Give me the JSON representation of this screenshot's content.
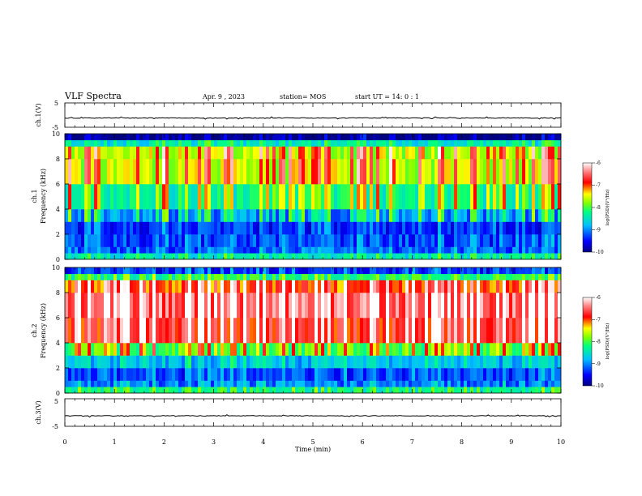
{
  "header": {
    "title": "VLF Spectra",
    "date": "Apr. 9 , 2023",
    "station": "station= MOS",
    "start": "start UT = 14: 0 : 1"
  },
  "panels": {
    "ch1_wave": {
      "label": "ch.1(V)",
      "ticks": [
        "5",
        "-5"
      ]
    },
    "ch1_spec": {
      "label_line1": "ch.1",
      "label_line2": "Frequency (kHz)"
    },
    "ch2_spec": {
      "label_line1": "ch.2",
      "label_line2": "Frequency (kHz)"
    },
    "ch3_wave": {
      "label": "ch.3(V)",
      "ticks": [
        "5",
        "-5"
      ]
    }
  },
  "colorbar": {
    "label": "log(PSD)(V²/Hz)",
    "ticks": [
      "-6",
      "-7",
      "-8",
      "-9",
      "-10"
    ]
  },
  "chart_data": [
    {
      "type": "line",
      "title": "",
      "ylabel": "ch.1(V)",
      "ylim": [
        -5,
        5
      ],
      "xlim": [
        0,
        10
      ],
      "x": [
        0,
        10
      ],
      "values": [
        -1.2,
        -1.2
      ]
    },
    {
      "type": "heatmap",
      "ylabel": "ch.1 Frequency (kHz)",
      "xlim": [
        0,
        10
      ],
      "ylim": [
        0,
        10
      ],
      "yticks": [
        "0",
        "2",
        "4",
        "6",
        "8",
        "10"
      ],
      "color_range": [
        -10,
        -6
      ],
      "freq_bands_khz": [
        0,
        0.5,
        1,
        2,
        3,
        4,
        6,
        8,
        9,
        9.5,
        10
      ],
      "band_log_psd": [
        -8.5,
        -9.2,
        -9.3,
        -9.4,
        -9.0,
        -8.3,
        -7.6,
        -7.6,
        -8.5,
        -10
      ]
    },
    {
      "type": "heatmap",
      "ylabel": "ch.2 Frequency (kHz)",
      "xlim": [
        0,
        10
      ],
      "ylim": [
        0,
        10
      ],
      "yticks": [
        "0",
        "2",
        "4",
        "6",
        "8",
        "10"
      ],
      "color_range": [
        -10,
        -6
      ],
      "freq_bands_khz": [
        0,
        0.5,
        1,
        2,
        3,
        4,
        6,
        8,
        9,
        9.5,
        10
      ],
      "band_log_psd": [
        -8.3,
        -9.1,
        -9.3,
        -8.8,
        -8.0,
        -6.8,
        -6.5,
        -7.0,
        -8.2,
        -9.4
      ]
    },
    {
      "type": "line",
      "ylabel": "ch.3(V)",
      "ylim": [
        -5,
        5
      ],
      "xlim": [
        0,
        10
      ],
      "x": [
        0,
        10
      ],
      "values": [
        -1.2,
        -1.2
      ]
    }
  ],
  "xaxis": {
    "label": "Time (min)",
    "ticks": [
      "0",
      "1",
      "2",
      "3",
      "4",
      "5",
      "6",
      "7",
      "8",
      "9",
      "10"
    ]
  }
}
